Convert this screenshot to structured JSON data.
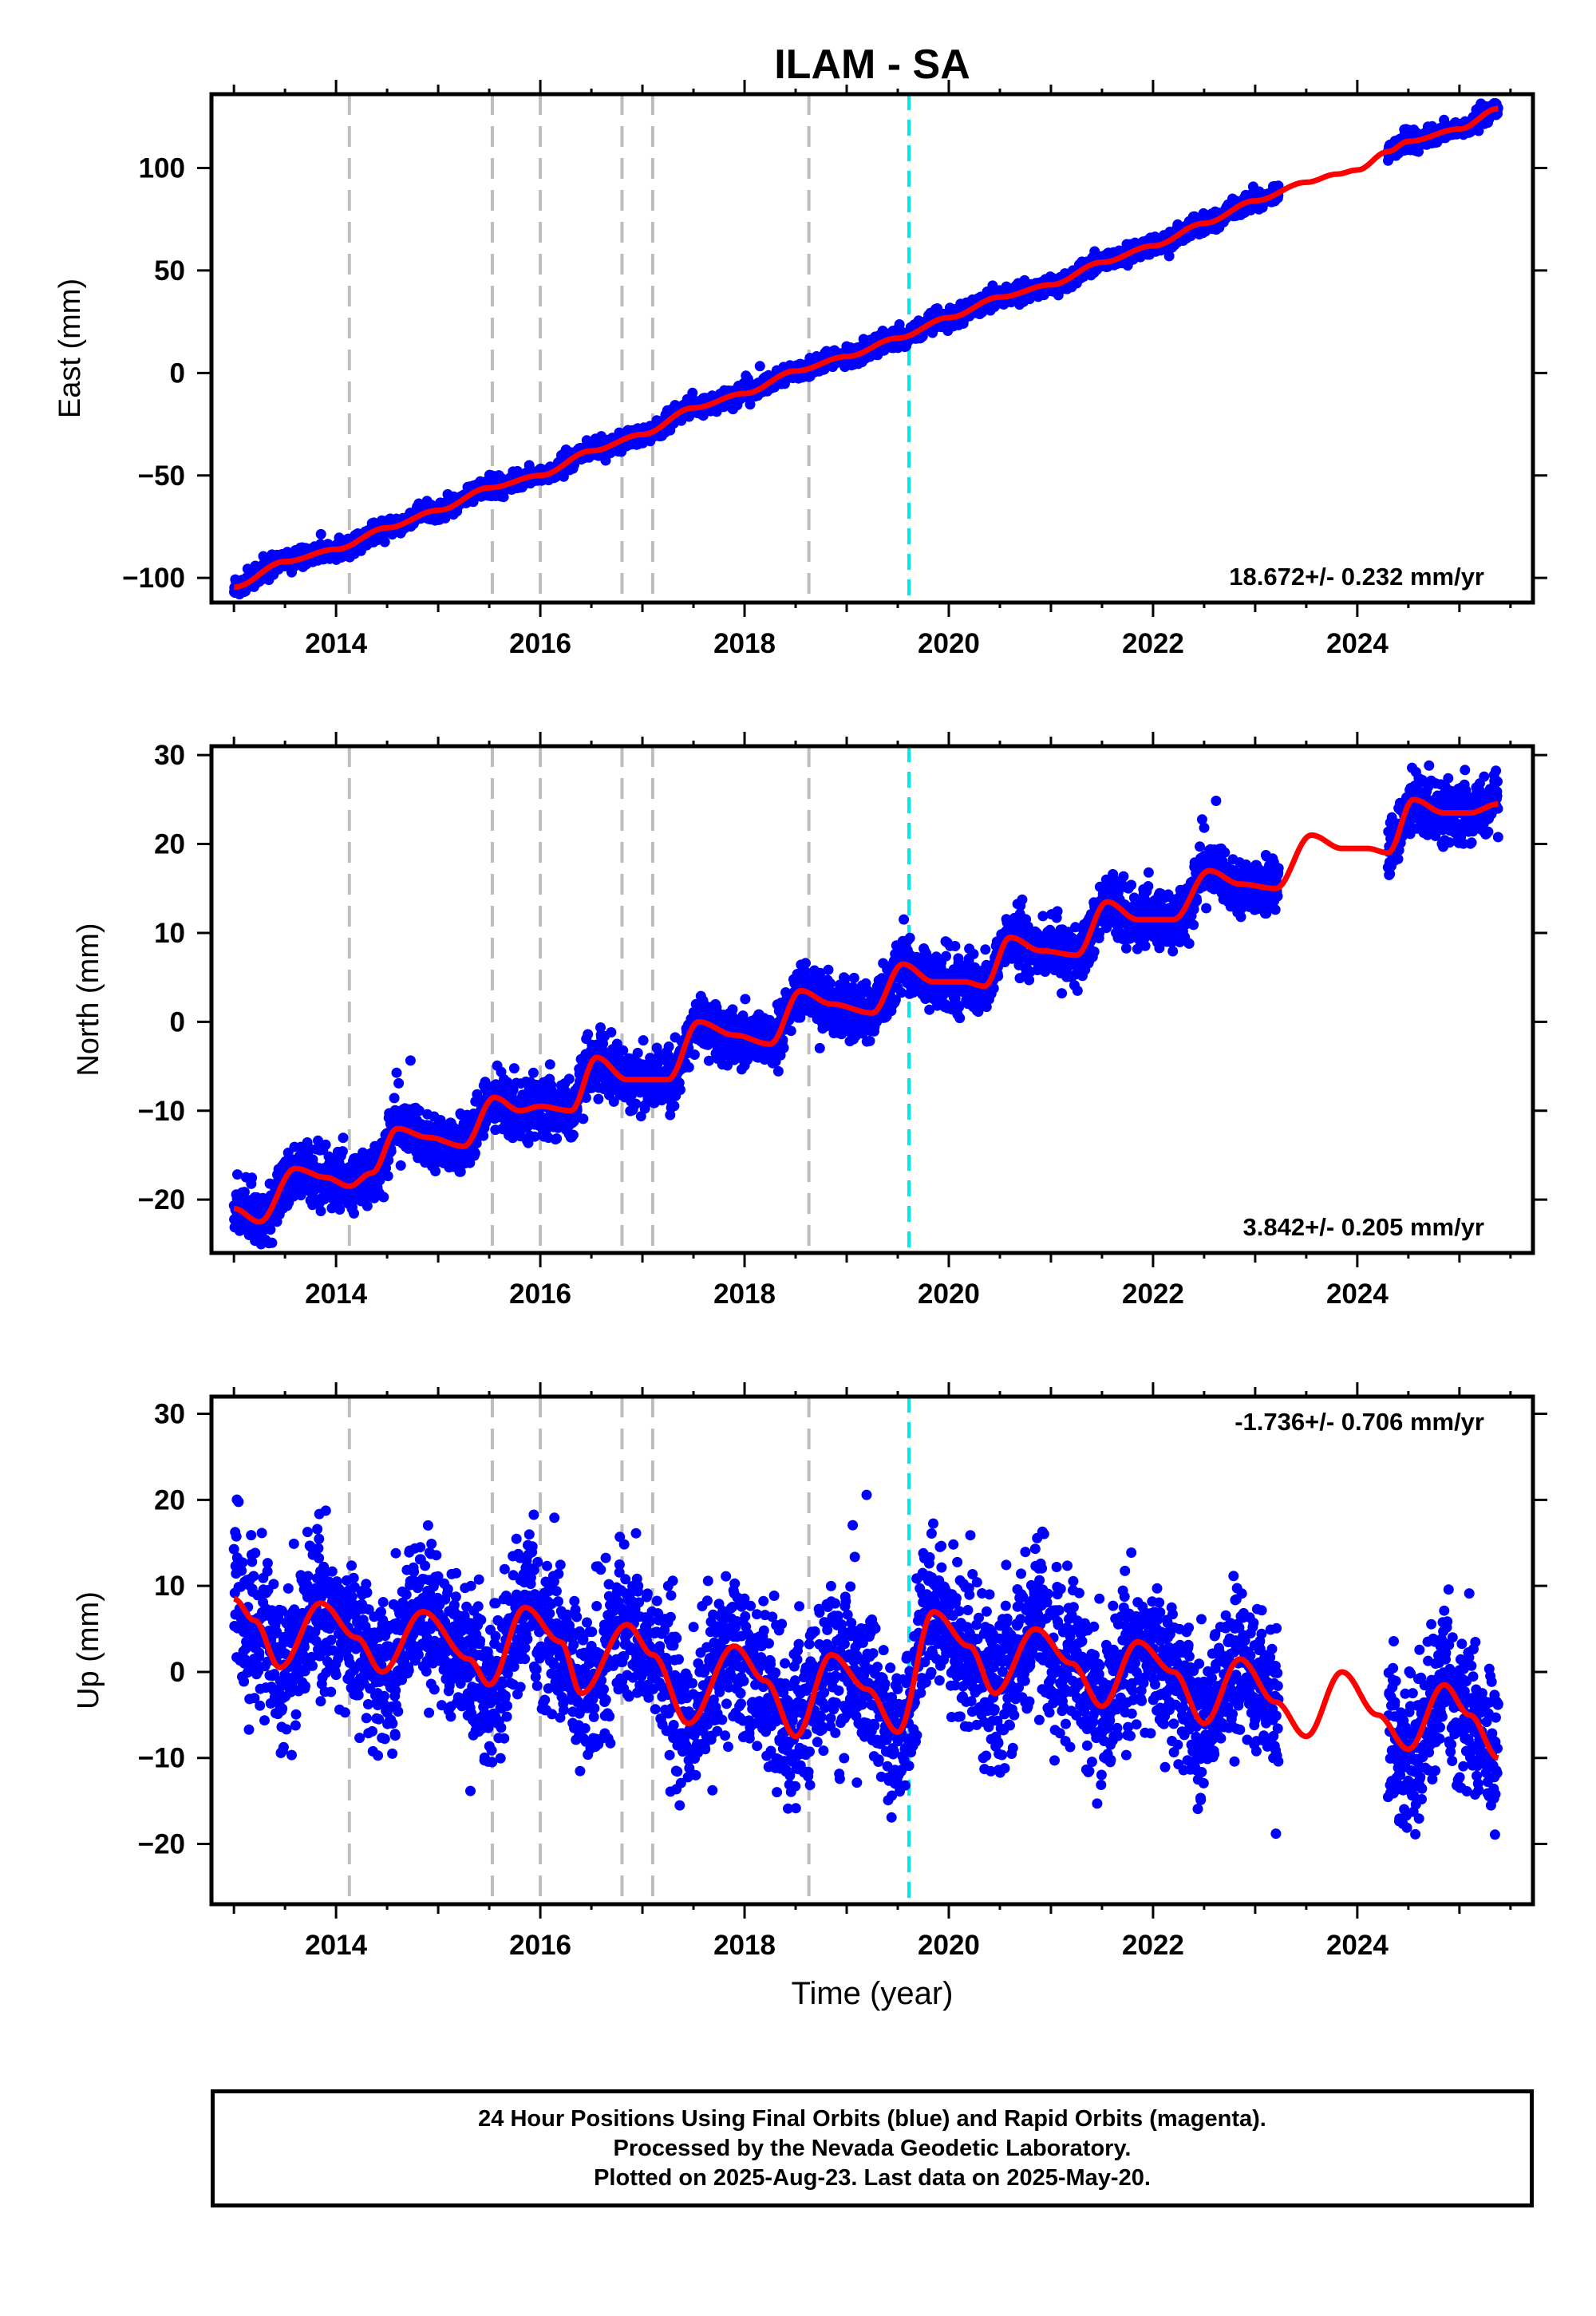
{
  "chart_data": [
    {
      "type": "scatter",
      "title": "ILAM - SA",
      "xlabel": "",
      "ylabel": "East (mm)",
      "xlim": [
        2012.78,
        2025.72
      ],
      "ylim": [
        -112,
        136
      ],
      "xticks": [
        2014,
        2016,
        2018,
        2020,
        2022,
        2024
      ],
      "yticks": [
        -100,
        -50,
        0,
        50,
        100
      ],
      "yticklabels": [
        "−100",
        "−50",
        "0",
        "50",
        "100"
      ],
      "rate_label": "18.672+/- 0.232 mm/yr",
      "rate_position": "bottom-right",
      "grid": false,
      "equipment_changes": [
        2014.13,
        2015.53,
        2016.0,
        2016.8,
        2017.1,
        2018.63
      ],
      "earthquake_lines": [
        2019.61
      ],
      "series": [
        {
          "name": "Final Orbits",
          "color": "#0000ff",
          "marker": "dot",
          "noise_mm": 2.2,
          "segments": [
            [
              2013.0,
              2023.23
            ],
            [
              2024.3,
              2025.38
            ]
          ],
          "points": [
            [
              2013.0,
              -104.5
            ],
            [
              2013.5,
              -92
            ],
            [
              2014.0,
              -86
            ],
            [
              2014.5,
              -75.5
            ],
            [
              2015.0,
              -67
            ],
            [
              2015.5,
              -56
            ],
            [
              2016.0,
              -50
            ],
            [
              2016.5,
              -38
            ],
            [
              2017.0,
              -30
            ],
            [
              2017.5,
              -17
            ],
            [
              2018.0,
              -10
            ],
            [
              2018.5,
              1
            ],
            [
              2019.0,
              8
            ],
            [
              2019.5,
              17
            ],
            [
              2020.0,
              27
            ],
            [
              2020.5,
              37
            ],
            [
              2021.0,
              43
            ],
            [
              2021.5,
              54
            ],
            [
              2022.0,
              62
            ],
            [
              2022.5,
              73
            ],
            [
              2023.0,
              84
            ],
            [
              2023.23,
              90
            ],
            [
              2024.3,
              108
            ],
            [
              2024.5,
              113
            ],
            [
              2025.0,
              119
            ],
            [
              2025.38,
              129
            ]
          ]
        },
        {
          "name": "Fit",
          "color": "#ff0000",
          "marker": "line",
          "points": [
            [
              2013.0,
              -104.5
            ],
            [
              2013.5,
              -92
            ],
            [
              2014.0,
              -86
            ],
            [
              2014.5,
              -75.5
            ],
            [
              2015.0,
              -67
            ],
            [
              2015.5,
              -56
            ],
            [
              2016.0,
              -50
            ],
            [
              2016.5,
              -38
            ],
            [
              2017.0,
              -30
            ],
            [
              2017.5,
              -17
            ],
            [
              2018.0,
              -10
            ],
            [
              2018.5,
              1
            ],
            [
              2019.0,
              8
            ],
            [
              2019.5,
              17
            ],
            [
              2020.0,
              27
            ],
            [
              2020.5,
              37
            ],
            [
              2021.0,
              43
            ],
            [
              2021.5,
              54
            ],
            [
              2022.0,
              62
            ],
            [
              2022.5,
              73
            ],
            [
              2023.0,
              84
            ],
            [
              2023.5,
              93
            ],
            [
              2023.8,
              97
            ],
            [
              2024.0,
              99
            ],
            [
              2024.3,
              108
            ],
            [
              2024.5,
              113
            ],
            [
              2025.0,
              119
            ],
            [
              2025.38,
              129
            ]
          ]
        }
      ]
    },
    {
      "type": "scatter",
      "title": "",
      "xlabel": "",
      "ylabel": "North (mm)",
      "xlim": [
        2012.78,
        2025.72
      ],
      "ylim": [
        -26,
        31
      ],
      "xticks": [
        2014,
        2016,
        2018,
        2020,
        2022,
        2024
      ],
      "yticks": [
        -20,
        -10,
        0,
        10,
        20,
        30
      ],
      "yticklabels": [
        "−20",
        "−10",
        "0",
        "10",
        "20",
        "30"
      ],
      "rate_label": "3.842+/- 0.205 mm/yr",
      "rate_position": "bottom-right",
      "grid": false,
      "equipment_changes": [
        2014.13,
        2015.53,
        2016.0,
        2016.8,
        2017.1,
        2018.63
      ],
      "earthquake_lines": [
        2019.61
      ],
      "series": [
        {
          "name": "Final Orbits",
          "color": "#0000ff",
          "marker": "dot",
          "noise_mm": 1.6,
          "segments": [
            [
              2013.0,
              2023.23
            ],
            [
              2024.3,
              2025.38
            ]
          ],
          "points": [
            [
              2013.0,
              -21
            ],
            [
              2013.25,
              -22.5
            ],
            [
              2013.6,
              -16.5
            ],
            [
              2013.9,
              -17.5
            ],
            [
              2014.13,
              -18.5
            ],
            [
              2014.35,
              -17
            ],
            [
              2014.6,
              -12
            ],
            [
              2014.9,
              -13
            ],
            [
              2015.25,
              -14
            ],
            [
              2015.55,
              -8.5
            ],
            [
              2015.8,
              -10
            ],
            [
              2016.0,
              -9.5
            ],
            [
              2016.3,
              -10
            ],
            [
              2016.55,
              -4
            ],
            [
              2016.85,
              -6.5
            ],
            [
              2017.25,
              -6.5
            ],
            [
              2017.55,
              0
            ],
            [
              2017.9,
              -1.5
            ],
            [
              2018.25,
              -2.5
            ],
            [
              2018.55,
              3.5
            ],
            [
              2018.85,
              2
            ],
            [
              2019.25,
              1
            ],
            [
              2019.55,
              6.5
            ],
            [
              2019.85,
              4.5
            ],
            [
              2020.15,
              4.5
            ],
            [
              2020.35,
              4
            ],
            [
              2020.6,
              9.5
            ],
            [
              2020.9,
              8
            ],
            [
              2021.25,
              7.5
            ],
            [
              2021.55,
              13.5
            ],
            [
              2021.85,
              11.5
            ],
            [
              2022.2,
              11.5
            ],
            [
              2022.55,
              17
            ],
            [
              2022.85,
              15.5
            ],
            [
              2023.23,
              15.5
            ]
          ],
          "points_b": [
            [
              2024.3,
              19.5
            ],
            [
              2024.55,
              25
            ],
            [
              2024.85,
              23.5
            ],
            [
              2025.1,
              23.5
            ],
            [
              2025.38,
              24.5
            ]
          ]
        },
        {
          "name": "Fit",
          "color": "#ff0000",
          "marker": "line",
          "points": [
            [
              2013.0,
              -21
            ],
            [
              2013.25,
              -22.5
            ],
            [
              2013.6,
              -16.5
            ],
            [
              2013.9,
              -17.5
            ],
            [
              2014.13,
              -18.5
            ],
            [
              2014.35,
              -17
            ],
            [
              2014.6,
              -12
            ],
            [
              2014.9,
              -13
            ],
            [
              2015.25,
              -14
            ],
            [
              2015.55,
              -8.5
            ],
            [
              2015.8,
              -10
            ],
            [
              2016.0,
              -9.5
            ],
            [
              2016.3,
              -10
            ],
            [
              2016.55,
              -4
            ],
            [
              2016.85,
              -6.5
            ],
            [
              2017.25,
              -6.5
            ],
            [
              2017.55,
              0
            ],
            [
              2017.9,
              -1.5
            ],
            [
              2018.25,
              -2.5
            ],
            [
              2018.55,
              3.5
            ],
            [
              2018.85,
              2
            ],
            [
              2019.25,
              1
            ],
            [
              2019.55,
              6.5
            ],
            [
              2019.85,
              4.5
            ],
            [
              2020.15,
              4.5
            ],
            [
              2020.35,
              4
            ],
            [
              2020.6,
              9.5
            ],
            [
              2020.9,
              8
            ],
            [
              2021.25,
              7.5
            ],
            [
              2021.55,
              13.5
            ],
            [
              2021.85,
              11.5
            ],
            [
              2022.2,
              11.5
            ],
            [
              2022.55,
              17
            ],
            [
              2022.85,
              15.5
            ],
            [
              2023.2,
              15
            ],
            [
              2023.55,
              21
            ],
            [
              2023.85,
              19.5
            ],
            [
              2024.1,
              19.5
            ],
            [
              2024.3,
              19
            ],
            [
              2024.55,
              25
            ],
            [
              2024.85,
              23.5
            ],
            [
              2025.1,
              23.5
            ],
            [
              2025.38,
              24.5
            ]
          ]
        }
      ]
    },
    {
      "type": "scatter",
      "title": "",
      "xlabel": "Time (year)",
      "ylabel": "Up (mm)",
      "xlim": [
        2012.78,
        2025.72
      ],
      "ylim": [
        -27,
        32
      ],
      "xticks": [
        2014,
        2016,
        2018,
        2020,
        2022,
        2024
      ],
      "yticks": [
        -20,
        -10,
        0,
        10,
        20,
        30
      ],
      "yticklabels": [
        "−20",
        "−10",
        "0",
        "10",
        "20",
        "30"
      ],
      "rate_label": "-1.736+/- 0.706 mm/yr",
      "rate_position": "top-right",
      "grid": false,
      "equipment_changes": [
        2014.13,
        2015.53,
        2016.0,
        2016.8,
        2017.1,
        2018.63
      ],
      "earthquake_lines": [
        2019.61
      ],
      "series": [
        {
          "name": "Final Orbits",
          "color": "#0000ff",
          "marker": "dot",
          "noise_mm": 4.5,
          "segments": [
            [
              2013.0,
              2023.23
            ],
            [
              2024.3,
              2025.38
            ]
          ],
          "points": [
            [
              2013.0,
              8.5
            ],
            [
              2013.2,
              6
            ],
            [
              2013.45,
              0.5
            ],
            [
              2013.85,
              8
            ],
            [
              2014.2,
              4
            ],
            [
              2014.45,
              0
            ],
            [
              2014.85,
              7
            ],
            [
              2015.3,
              1.5
            ],
            [
              2015.5,
              -1.5
            ],
            [
              2015.85,
              7.5
            ],
            [
              2016.2,
              3.5
            ],
            [
              2016.4,
              -2.5
            ],
            [
              2016.85,
              5.5
            ],
            [
              2017.1,
              2
            ],
            [
              2017.45,
              -6
            ],
            [
              2017.9,
              3
            ],
            [
              2018.2,
              -1
            ],
            [
              2018.5,
              -7.5
            ],
            [
              2018.85,
              2
            ],
            [
              2019.2,
              -2
            ],
            [
              2019.5,
              -7
            ],
            [
              2019.85,
              7
            ],
            [
              2020.2,
              3
            ],
            [
              2020.45,
              -2.5
            ],
            [
              2020.85,
              5
            ],
            [
              2021.2,
              1
            ],
            [
              2021.5,
              -4
            ],
            [
              2021.85,
              3.5
            ],
            [
              2022.2,
              0
            ],
            [
              2022.5,
              -6
            ],
            [
              2022.85,
              1.5
            ],
            [
              2023.23,
              -3.5
            ]
          ],
          "points_b": [
            [
              2024.3,
              -4
            ],
            [
              2024.5,
              -9
            ],
            [
              2024.85,
              -1.5
            ],
            [
              2025.1,
              -5
            ],
            [
              2025.38,
              -10
            ]
          ]
        },
        {
          "name": "Fit",
          "color": "#ff0000",
          "marker": "line",
          "points": [
            [
              2013.0,
              8.5
            ],
            [
              2013.2,
              6
            ],
            [
              2013.45,
              0.5
            ],
            [
              2013.85,
              8
            ],
            [
              2014.2,
              4
            ],
            [
              2014.45,
              0
            ],
            [
              2014.85,
              7
            ],
            [
              2015.3,
              1.5
            ],
            [
              2015.5,
              -1.5
            ],
            [
              2015.85,
              7.5
            ],
            [
              2016.2,
              3.5
            ],
            [
              2016.4,
              -2.5
            ],
            [
              2016.85,
              5.5
            ],
            [
              2017.1,
              2
            ],
            [
              2017.45,
              -6
            ],
            [
              2017.9,
              3
            ],
            [
              2018.2,
              -1
            ],
            [
              2018.5,
              -7.5
            ],
            [
              2018.85,
              2
            ],
            [
              2019.2,
              -2
            ],
            [
              2019.5,
              -7
            ],
            [
              2019.85,
              7
            ],
            [
              2020.2,
              3
            ],
            [
              2020.45,
              -2.5
            ],
            [
              2020.85,
              5
            ],
            [
              2021.2,
              1
            ],
            [
              2021.5,
              -4
            ],
            [
              2021.85,
              3.5
            ],
            [
              2022.2,
              0
            ],
            [
              2022.5,
              -6
            ],
            [
              2022.85,
              1.5
            ],
            [
              2023.2,
              -3.5
            ],
            [
              2023.5,
              -7.5
            ],
            [
              2023.85,
              0
            ],
            [
              2024.2,
              -5
            ],
            [
              2024.5,
              -9
            ],
            [
              2024.85,
              -1.5
            ],
            [
              2025.1,
              -5
            ],
            [
              2025.38,
              -10
            ]
          ]
        }
      ]
    }
  ],
  "footer": {
    "line1": "24 Hour Positions Using Final Orbits (blue) and Rapid Orbits (magenta).",
    "line2": "Processed by the Nevada Geodetic Laboratory.",
    "line3": "Plotted on 2025-Aug-23. Last data on 2025-May-20."
  }
}
